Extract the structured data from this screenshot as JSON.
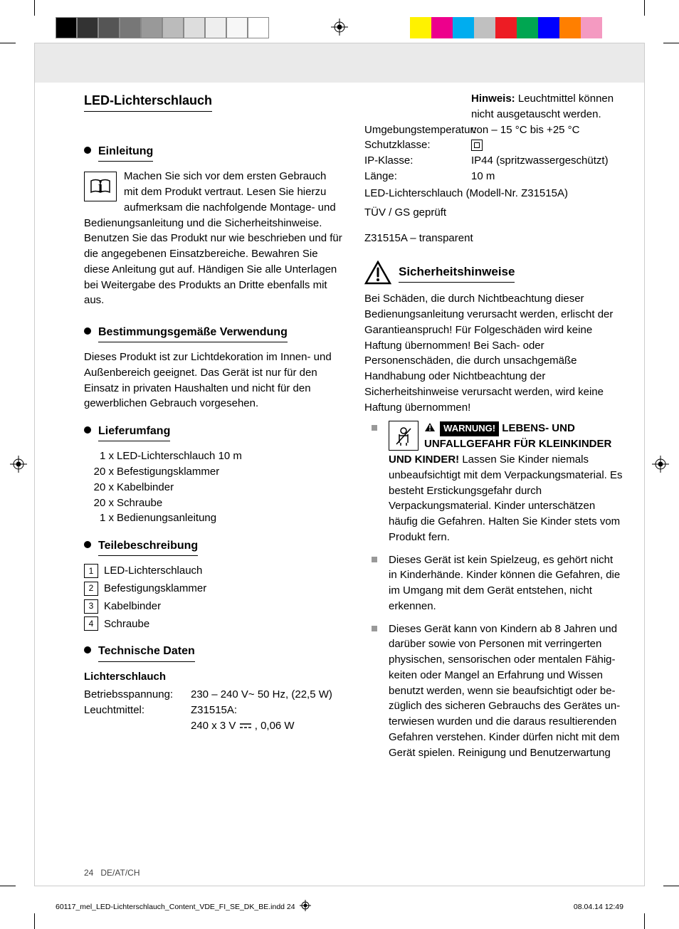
{
  "print": {
    "colorbar_left": [
      "#000000",
      "#333333",
      "#555555",
      "#777777",
      "#999999",
      "#bbbbbb",
      "#dddddd",
      "#eeeeee",
      "#f7f7f7",
      "#ffffff"
    ],
    "colorbar_right": [
      "#fff200",
      "#ed008c",
      "#00adef",
      "#c0c0c0",
      "#ed1c24",
      "#00a651",
      "#0000ff",
      "#ff7f00",
      "#f49ac1",
      "#ffffff"
    ]
  },
  "title": "LED-Lichterschlauch",
  "sections": {
    "intro_h": "Einleitung",
    "intro_p": "Machen Sie sich vor dem ersten Gebrauch mit dem Produkt vertraut. Lesen Sie hierzu aufmerksam die nachfolgende Montage- und Bedienungsanleitung und die Sicherheitshinweise. Benutzen Sie das Produkt nur wie beschrieben und für die angegebenen Einsatzbereiche. Bewahren Sie diese Anleitung gut auf. Händigen Sie alle Unterlagen bei Weitergabe des Produkts an Dritte ebenfalls mit aus.",
    "use_h": "Bestimmungsgemäße Verwendung",
    "use_p": "Dieses Produkt ist zur Lichtdekoration im Innen- und Außenbereich geeignet. Das Gerät ist nur für den Einsatz in privaten Haushalten und nicht für den gewerblichen Gebrauch vorgesehen.",
    "supply_h": "Lieferumfang",
    "supply": [
      {
        "qty": "1 x",
        "item": "LED-Lichterschlauch 10 m"
      },
      {
        "qty": "20 x",
        "item": "Befestigungsklammer"
      },
      {
        "qty": "20 x",
        "item": "Kabelbinder"
      },
      {
        "qty": "20 x",
        "item": "Schraube"
      },
      {
        "qty": "1 x",
        "item": "Bedienungsanleitung"
      }
    ],
    "parts_h": "Teilebeschreibung",
    "parts": [
      {
        "n": "1",
        "item": "LED-Lichterschlauch"
      },
      {
        "n": "2",
        "item": "Befestigungsklammer"
      },
      {
        "n": "3",
        "item": "Kabelbinder"
      },
      {
        "n": "4",
        "item": "Schraube"
      }
    ],
    "tech_h": "Technische Daten",
    "tech_sub": "Lichterschlauch",
    "spec_volt_k": "Betriebsspannung:",
    "spec_volt_v": "230 – 240 V~ 50 Hz, (22,5 W)",
    "spec_lamp_k": "Leuchtmittel:",
    "spec_lamp_v1": "Z31515A:",
    "spec_lamp_v2a": "240 x 3 V",
    "spec_lamp_v2b": ", 0,06 W",
    "spec_lamp_note_b": "Hinweis:",
    "spec_lamp_note": " Leuchtmittel können nicht ausgetauscht werden.",
    "spec_temp_k": "Umgebungstemperatur:",
    "spec_temp_v": "von – 15 °C bis +25 °C",
    "spec_class_k": "Schutzklasse:",
    "spec_ip_k": "IP-Klasse:",
    "spec_ip_v": "IP44 (spritzwassergeschützt)",
    "spec_len_k": "Länge:",
    "spec_len_v": "10 m",
    "spec_model": "LED-Lichterschlauch (Modell-Nr. Z31515A)",
    "spec_tuv": "TÜV / GS geprüft",
    "variant": "Z31515A – transparent",
    "safety_h": "Sicherheitshinweise",
    "safety_p": "Bei Schäden, die durch Nichtbeachtung dieser Bedienungsanleitung verursacht werden, erlischt der Garantieanspruch! Für Folgeschäden wird keine Haftung übernommen! Bei Sach- oder Personenschäden, die durch unsachgemäße Handhabung oder Nichtbeachtung der Sicherheitshinweise verursacht werden, wird keine Haftung übernommen!",
    "warn_label": "WARNUNG!",
    "warn1_b": " LEBENS- UND UNFALLGEFAHR FÜR KLEIN­KINDER UND KINDER!",
    "warn1_t": " Lassen Sie Kinder niemals unbeaufsichtigt mit dem Ver­packungsmaterial. Es besteht Erstickungsgefahr durch Verpackungsmaterial. Kinder unterschätzen häufig die Gefahren. Halten Sie Kinder stets vom Produkt fern.",
    "warn2": "Dieses Gerät ist kein Spielzeug, es gehört nicht in Kinderhände. Kinder können die Gefahren, die im Umgang mit dem Gerät entstehen, nicht erkennen.",
    "warn3": "Dieses Gerät kann von Kindern ab 8 Jahren und darüber sowie von Personen mit verringerten physischen, sensorischen oder mentalen Fähig­keiten oder Mangel an Erfahrung und Wissen benutzt werden, wenn sie beaufsichtigt oder be­züglich des sicheren Gebrauchs des Gerätes un­terwiesen wurden und die daraus resultierenden Gefahren verstehen. Kinder dürfen nicht mit dem Gerät spielen. Reinigung und Benutzerwartung"
  },
  "footer": {
    "pgnum": "24",
    "pglang": "DE/AT/CH",
    "slug_file": "60117_mel_LED-Lichterschlauch_Content_VDE_FI_SE_DK_BE.indd   24",
    "slug_date": "08.04.14   12:49"
  }
}
